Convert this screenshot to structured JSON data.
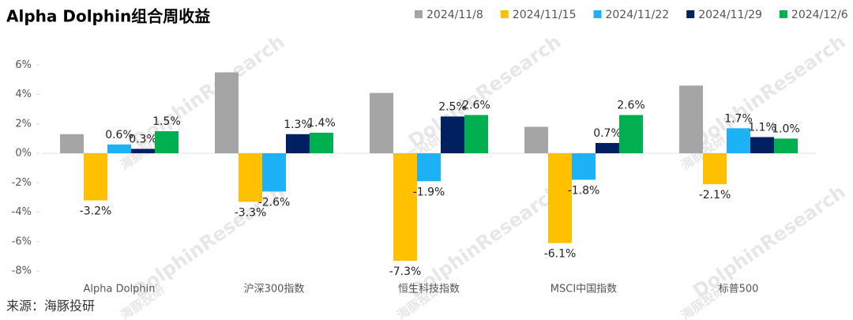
{
  "chart_data": {
    "type": "bar",
    "title": "Alpha Dolphin组合周收益",
    "categories": [
      "Alpha Dolphin",
      "沪深300指数",
      "恒生科技指数",
      "MSCI中国指数",
      "标普500"
    ],
    "series": [
      {
        "name": "2024/11/8",
        "color": "#a5a5a5",
        "values": [
          1.3,
          5.5,
          4.1,
          1.8,
          4.6
        ]
      },
      {
        "name": "2024/11/15",
        "color": "#ffc000",
        "values": [
          -3.2,
          -3.3,
          -7.3,
          -6.1,
          -2.1
        ],
        "value_labels": [
          "-3.2%",
          "-3.3%",
          "-7.3%",
          "-6.1%",
          "-2.1%"
        ]
      },
      {
        "name": "2024/11/22",
        "color": "#1cb2f5",
        "values": [
          0.6,
          -2.6,
          -1.9,
          -1.8,
          1.7
        ],
        "value_labels": [
          "0.6%",
          "-2.6%",
          "-1.9%",
          "-1.8%",
          "1.7%"
        ]
      },
      {
        "name": "2024/11/29",
        "color": "#002060",
        "values": [
          0.3,
          1.3,
          2.5,
          0.7,
          1.1
        ],
        "value_labels": [
          "0.3%",
          "1.3%",
          "2.5%",
          "0.7%",
          "1.1%"
        ]
      },
      {
        "name": "2024/12/6",
        "color": "#00b050",
        "values": [
          1.5,
          1.4,
          2.6,
          2.6,
          1.0
        ],
        "value_labels": [
          "1.5%",
          "1.4%",
          "2.6%",
          "2.6%",
          "1.0%"
        ]
      }
    ],
    "ylim": [
      -8,
      8
    ],
    "yticks": [
      {
        "value": -8,
        "label": "-8%"
      },
      {
        "value": -6,
        "label": "-6%"
      },
      {
        "value": -4,
        "label": "-4%"
      },
      {
        "value": -2,
        "label": "-2%"
      },
      {
        "value": 0,
        "label": "0%"
      },
      {
        "value": 2,
        "label": "2%"
      },
      {
        "value": 4,
        "label": "4%"
      },
      {
        "value": 6,
        "label": "6%"
      }
    ],
    "grid": false,
    "legend": "top-right",
    "source": "来源：海豚投研",
    "watermark": [
      "海豚投研",
      "DolphinResearch"
    ]
  }
}
